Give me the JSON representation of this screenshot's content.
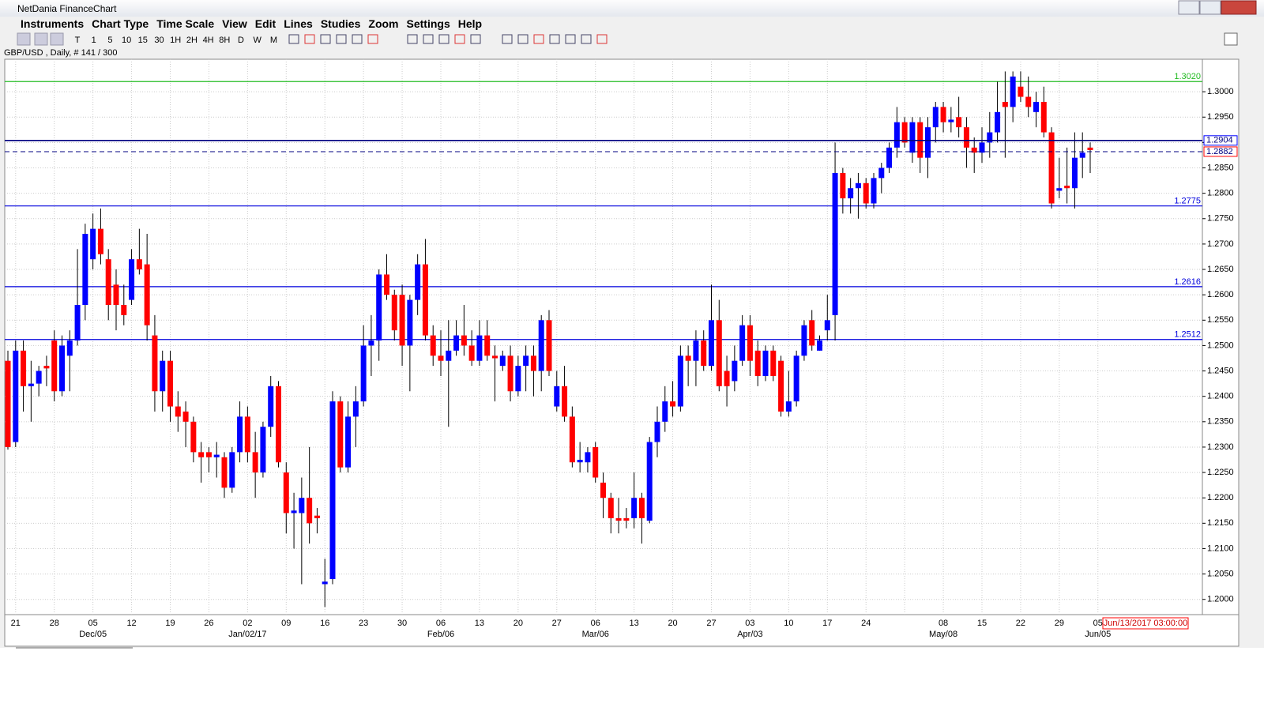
{
  "window_title": "NetDania FinanceChart",
  "menu": [
    "Instruments",
    "Chart Type",
    "Time Scale",
    "View",
    "Edit",
    "Lines",
    "Studies",
    "Zoom",
    "Settings",
    "Help"
  ],
  "toolbar": [
    "T",
    "1",
    "5",
    "10",
    "15",
    "30",
    "1H",
    "2H",
    "4H",
    "8H",
    "D",
    "W",
    "M"
  ],
  "chart_data": {
    "type": "candlestick",
    "title": "GBP/USD , Daily, # 141 / 300",
    "up_color": "#0000ff",
    "down_color": "#ff0000",
    "open": [
      1.247,
      1.231,
      1.249,
      1.242,
      1.2425,
      1.246,
      1.251,
      1.241,
      1.248,
      1.251,
      1.258,
      1.267,
      1.273,
      1.267,
      1.262,
      1.258,
      1.259,
      1.267,
      1.266,
      1.252,
      1.241,
      1.247,
      1.238,
      1.237,
      1.235,
      1.229,
      1.229,
      1.228,
      1.228,
      1.222,
      1.229,
      1.236,
      1.229,
      1.225,
      1.234,
      1.242,
      1.225,
      1.217,
      1.217,
      1.22,
      1.2165,
      1.203,
      1.204,
      1.239,
      1.226,
      1.236,
      1.239,
      1.25,
      1.251,
      1.264,
      1.26,
      1.26,
      1.25,
      1.259,
      1.266,
      1.252,
      1.248,
      1.247,
      1.249,
      1.252,
      1.25,
      1.247,
      1.252,
      1.248,
      1.246,
      1.248,
      1.241,
      1.246,
      1.248,
      1.245,
      1.255,
      1.238,
      1.242,
      1.236,
      1.227,
      1.227,
      1.23,
      1.223,
      1.22,
      1.216,
      1.216,
      1.216,
      1.22,
      1.2155,
      1.231,
      1.235,
      1.239,
      1.238,
      1.248,
      1.247,
      1.251,
      1.246,
      1.255,
      1.245,
      1.243,
      1.247,
      1.254,
      1.249,
      1.244,
      1.249,
      1.247,
      1.237,
      1.239,
      1.248,
      1.255,
      1.249,
      1.253,
      1.256,
      1.284,
      1.279,
      1.281,
      1.282,
      1.278,
      1.283,
      1.285,
      1.289,
      1.294,
      1.288,
      1.294,
      1.287,
      1.293,
      1.297,
      1.294,
      1.295,
      1.293,
      1.289,
      1.288,
      1.29,
      1.292,
      1.298,
      1.297,
      1.301,
      1.299,
      1.296,
      1.298,
      1.292,
      1.2805,
      1.2815,
      1.281,
      1.287,
      1.289
    ],
    "high": [
      1.249,
      1.251,
      1.251,
      1.247,
      1.246,
      1.248,
      1.253,
      1.252,
      1.253,
      1.269,
      1.274,
      1.276,
      1.277,
      1.269,
      1.265,
      1.262,
      1.269,
      1.273,
      1.272,
      1.256,
      1.249,
      1.249,
      1.241,
      1.239,
      1.236,
      1.231,
      1.23,
      1.231,
      1.229,
      1.23,
      1.239,
      1.238,
      1.233,
      1.235,
      1.244,
      1.243,
      1.227,
      1.221,
      1.224,
      1.23,
      1.218,
      1.208,
      1.241,
      1.24,
      1.239,
      1.242,
      1.254,
      1.256,
      1.265,
      1.268,
      1.261,
      1.262,
      1.26,
      1.268,
      1.271,
      1.254,
      1.253,
      1.255,
      1.255,
      1.258,
      1.253,
      1.255,
      1.255,
      1.25,
      1.249,
      1.25,
      1.248,
      1.25,
      1.25,
      1.256,
      1.257,
      1.245,
      1.246,
      1.238,
      1.231,
      1.23,
      1.231,
      1.225,
      1.221,
      1.22,
      1.218,
      1.225,
      1.221,
      1.232,
      1.238,
      1.242,
      1.243,
      1.25,
      1.25,
      1.253,
      1.253,
      1.262,
      1.259,
      1.248,
      1.25,
      1.256,
      1.256,
      1.251,
      1.25,
      1.25,
      1.248,
      1.245,
      1.249,
      1.255,
      1.257,
      1.252,
      1.26,
      1.29,
      1.285,
      1.283,
      1.284,
      1.283,
      1.284,
      1.286,
      1.29,
      1.297,
      1.295,
      1.295,
      1.295,
      1.295,
      1.298,
      1.298,
      1.297,
      1.299,
      1.295,
      1.291,
      1.293,
      1.296,
      1.302,
      1.304,
      1.304,
      1.304,
      1.303,
      1.3,
      1.301,
      1.293,
      1.287,
      1.289,
      1.292,
      1.292,
      1.29
    ],
    "low": [
      1.2295,
      1.23,
      1.237,
      1.235,
      1.24,
      1.242,
      1.239,
      1.24,
      1.241,
      1.25,
      1.255,
      1.265,
      1.266,
      1.255,
      1.253,
      1.254,
      1.258,
      1.264,
      1.251,
      1.237,
      1.237,
      1.235,
      1.233,
      1.23,
      1.227,
      1.223,
      1.225,
      1.224,
      1.22,
      1.221,
      1.227,
      1.227,
      1.22,
      1.224,
      1.232,
      1.226,
      1.213,
      1.21,
      1.203,
      1.211,
      1.213,
      1.1985,
      1.203,
      1.225,
      1.225,
      1.23,
      1.238,
      1.244,
      1.247,
      1.259,
      1.251,
      1.246,
      1.241,
      1.256,
      1.251,
      1.246,
      1.244,
      1.234,
      1.248,
      1.248,
      1.246,
      1.246,
      1.247,
      1.239,
      1.245,
      1.239,
      1.24,
      1.241,
      1.24,
      1.241,
      1.244,
      1.237,
      1.235,
      1.226,
      1.225,
      1.225,
      1.223,
      1.216,
      1.213,
      1.213,
      1.214,
      1.214,
      1.211,
      1.215,
      1.228,
      1.233,
      1.236,
      1.237,
      1.242,
      1.242,
      1.245,
      1.245,
      1.241,
      1.238,
      1.241,
      1.246,
      1.244,
      1.242,
      1.243,
      1.243,
      1.236,
      1.236,
      1.238,
      1.247,
      1.249,
      1.249,
      1.251,
      1.251,
      1.276,
      1.276,
      1.275,
      1.277,
      1.277,
      1.28,
      1.284,
      1.287,
      1.289,
      1.286,
      1.284,
      1.283,
      1.29,
      1.292,
      1.292,
      1.291,
      1.285,
      1.284,
      1.286,
      1.287,
      1.29,
      1.287,
      1.294,
      1.298,
      1.295,
      1.293,
      1.291,
      1.277,
      1.279,
      1.278,
      1.277,
      1.283,
      1.284
    ],
    "close": [
      1.23,
      1.249,
      1.242,
      1.2425,
      1.245,
      1.2455,
      1.241,
      1.25,
      1.251,
      1.258,
      1.272,
      1.273,
      1.268,
      1.258,
      1.258,
      1.256,
      1.267,
      1.265,
      1.254,
      1.241,
      1.247,
      1.238,
      1.236,
      1.235,
      1.229,
      1.228,
      1.228,
      1.2285,
      1.222,
      1.229,
      1.236,
      1.229,
      1.225,
      1.234,
      1.242,
      1.227,
      1.217,
      1.2175,
      1.22,
      1.215,
      1.216,
      1.2035,
      1.239,
      1.226,
      1.236,
      1.239,
      1.25,
      1.251,
      1.264,
      1.26,
      1.253,
      1.25,
      1.259,
      1.266,
      1.252,
      1.248,
      1.247,
      1.249,
      1.252,
      1.25,
      1.247,
      1.252,
      1.248,
      1.2475,
      1.248,
      1.241,
      1.246,
      1.248,
      1.245,
      1.255,
      1.245,
      1.242,
      1.236,
      1.227,
      1.2275,
      1.229,
      1.224,
      1.22,
      1.216,
      1.2155,
      1.2155,
      1.22,
      1.216,
      1.231,
      1.235,
      1.239,
      1.238,
      1.248,
      1.247,
      1.251,
      1.246,
      1.255,
      1.242,
      1.242,
      1.247,
      1.254,
      1.247,
      1.244,
      1.249,
      1.244,
      1.237,
      1.239,
      1.248,
      1.254,
      1.25,
      1.251,
      1.255,
      1.284,
      1.279,
      1.281,
      1.282,
      1.278,
      1.283,
      1.285,
      1.289,
      1.294,
      1.29,
      1.294,
      1.287,
      1.293,
      1.297,
      1.294,
      1.2945,
      1.293,
      1.289,
      1.288,
      1.29,
      1.292,
      1.296,
      1.297,
      1.303,
      1.299,
      1.297,
      1.298,
      1.292,
      1.278,
      1.281,
      1.281,
      1.287,
      1.288,
      1.2885
    ],
    "x_day_labels": [
      "21",
      "28",
      "05",
      "12",
      "19",
      "26",
      "02",
      "09",
      "16",
      "23",
      "30",
      "06",
      "13",
      "20",
      "27",
      "06",
      "13",
      "20",
      "27",
      "03",
      "10",
      "17",
      "24",
      null,
      "08",
      "15",
      "22",
      "29",
      "05"
    ],
    "x_month_labels": [
      null,
      null,
      "Dec/05",
      null,
      null,
      null,
      "Jan/02/17",
      null,
      null,
      null,
      null,
      "Feb/06",
      null,
      null,
      null,
      "Mar/06",
      null,
      null,
      null,
      "Apr/03",
      null,
      null,
      null,
      null,
      "May/08",
      null,
      null,
      null,
      "Jun/05"
    ],
    "ylim": [
      1.197,
      1.3064
    ],
    "yticks": [
      {
        "value": 1.2,
        "label": "1.2000"
      },
      {
        "value": 1.205,
        "label": "1.2050"
      },
      {
        "value": 1.21,
        "label": "1.2100"
      },
      {
        "value": 1.215,
        "label": "1.2150"
      },
      {
        "value": 1.22,
        "label": "1.2200"
      },
      {
        "value": 1.225,
        "label": "1.2250"
      },
      {
        "value": 1.23,
        "label": "1.2300"
      },
      {
        "value": 1.235,
        "label": "1.2350"
      },
      {
        "value": 1.24,
        "label": "1.2400"
      },
      {
        "value": 1.245,
        "label": "1.2450"
      },
      {
        "value": 1.25,
        "label": "1.2500"
      },
      {
        "value": 1.255,
        "label": "1.2550"
      },
      {
        "value": 1.26,
        "label": "1.2600"
      },
      {
        "value": 1.265,
        "label": "1.2650"
      },
      {
        "value": 1.27,
        "label": "1.2700"
      },
      {
        "value": 1.275,
        "label": "1.2750"
      },
      {
        "value": 1.28,
        "label": "1.2800"
      },
      {
        "value": 1.285,
        "label": "1.2850"
      },
      {
        "value": 1.29,
        "label": "1.2900"
      },
      {
        "value": 1.295,
        "label": "1.2950"
      },
      {
        "value": 1.3,
        "label": "1.3000"
      }
    ],
    "grid": true,
    "levels": [
      {
        "value": 1.302,
        "label": "1.3020",
        "color": "#22bb22"
      },
      {
        "value": 1.2775,
        "label": "1.2775",
        "color": "#0000dd"
      },
      {
        "value": 1.2616,
        "label": "1.2616",
        "color": "#0000dd"
      },
      {
        "value": 1.2512,
        "label": "1.2512",
        "color": "#0000dd"
      }
    ],
    "price_markers": [
      {
        "value": 1.2904,
        "label": "1.2904",
        "color": "#000080",
        "box_color": "#0000ff",
        "dashed": false
      },
      {
        "value": 1.2882,
        "label": "1.2882",
        "color": "#000080",
        "box_color": "#ff0000",
        "dashed": true
      }
    ],
    "cursor_date": "Jun/13/2017 03:00:00"
  }
}
